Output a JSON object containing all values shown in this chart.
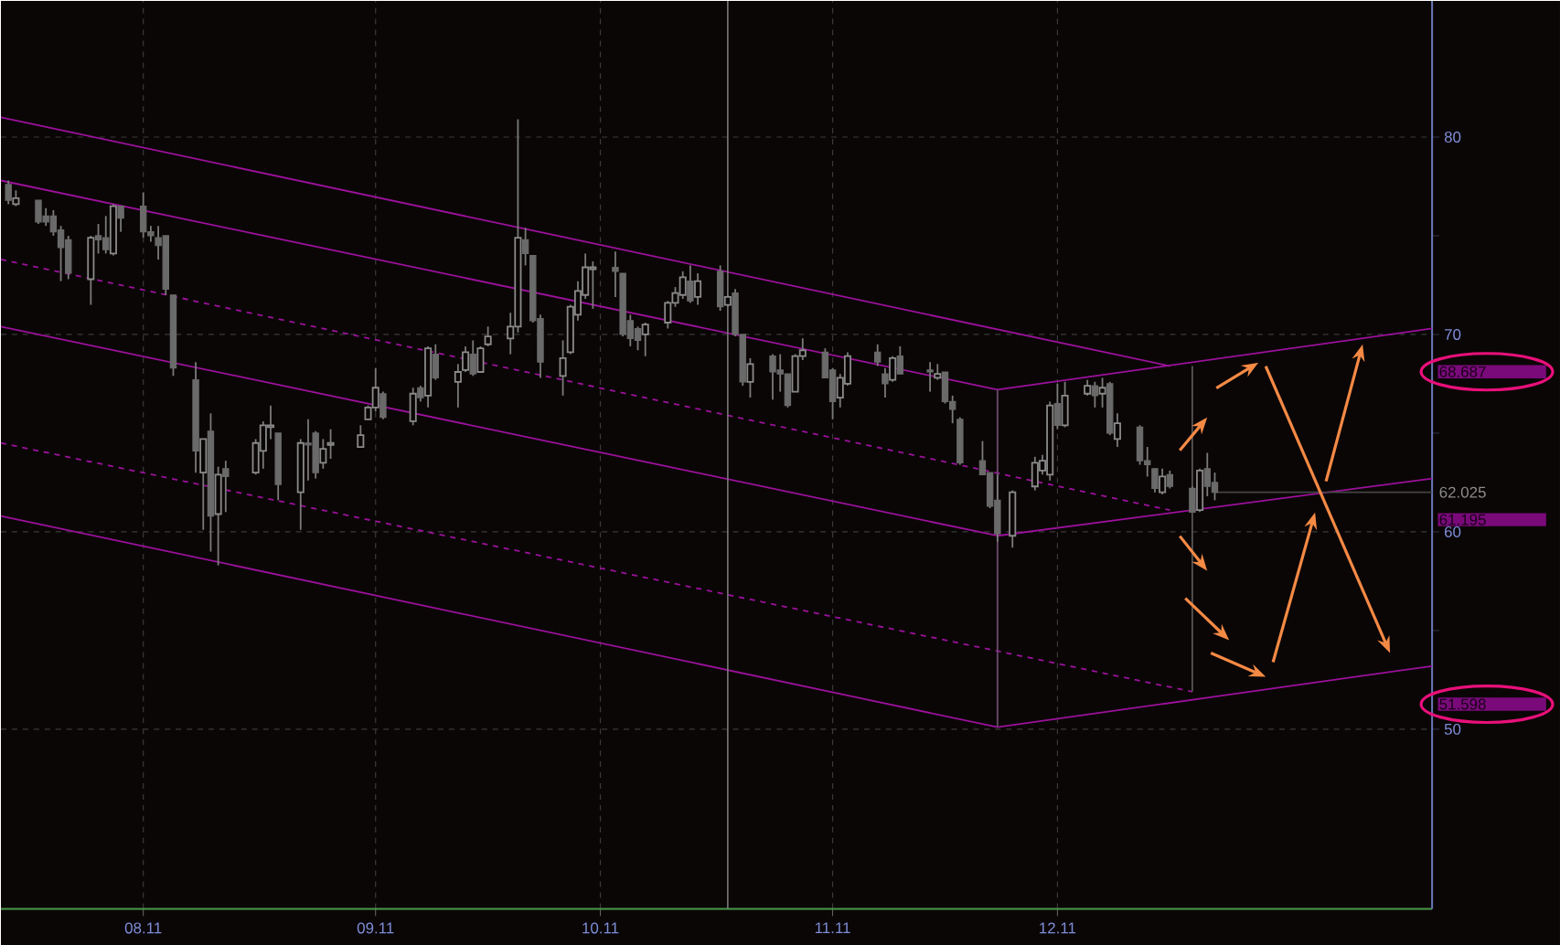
{
  "chart_data": {
    "type": "candlestick",
    "x": [
      "2011-07-14",
      "2011-07-15",
      "2011-07-18",
      "2011-07-19",
      "2011-07-20",
      "2011-07-21",
      "2011-07-22",
      "2011-07-25",
      "2011-07-26",
      "2011-07-27",
      "2011-07-28",
      "2011-07-29",
      "2011-08-01",
      "2011-08-02",
      "2011-08-03",
      "2011-08-04",
      "2011-08-05",
      "2011-08-08",
      "2011-08-09",
      "2011-08-10",
      "2011-08-11",
      "2011-08-12",
      "2011-08-16",
      "2011-08-17",
      "2011-08-18",
      "2011-08-19",
      "2011-08-22",
      "2011-08-23",
      "2011-08-24",
      "2011-08-25",
      "2011-08-26",
      "2011-08-30",
      "2011-08-31",
      "2011-09-01",
      "2011-09-02",
      "2011-09-06",
      "2011-09-07",
      "2011-09-08",
      "2011-09-09",
      "2011-09-12",
      "2011-09-13",
      "2011-09-14",
      "2011-09-15",
      "2011-09-16",
      "2011-09-19",
      "2011-09-20",
      "2011-09-21",
      "2011-09-22",
      "2011-09-23",
      "2011-09-26",
      "2011-09-27",
      "2011-09-28",
      "2011-09-29",
      "2011-09-30",
      "2011-10-03",
      "2011-10-04",
      "2011-10-05",
      "2011-10-06",
      "2011-10-07",
      "2011-10-10",
      "2011-10-11",
      "2011-10-12",
      "2011-10-13",
      "2011-10-14",
      "2011-10-17",
      "2011-10-18",
      "2011-10-19",
      "2011-10-20",
      "2011-10-21",
      "2011-10-24",
      "2011-10-25",
      "2011-10-26",
      "2011-10-27",
      "2011-10-28",
      "2011-10-31",
      "2011-11-01",
      "2011-11-02",
      "2011-11-03",
      "2011-11-07",
      "2011-11-08",
      "2011-11-09",
      "2011-11-10",
      "2011-11-14",
      "2011-11-15",
      "2011-11-16",
      "2011-11-17",
      "2011-11-18",
      "2011-11-21",
      "2011-11-22",
      "2011-11-23",
      "2011-11-25",
      "2011-11-28",
      "2011-11-29",
      "2011-11-30",
      "2011-12-01",
      "2011-12-02",
      "2011-12-05",
      "2011-12-06",
      "2011-12-07",
      "2011-12-08",
      "2011-12-09",
      "2011-12-12",
      "2011-12-13",
      "2011-12-14",
      "2011-12-15",
      "2011-12-16",
      "2011-12-19",
      "2011-12-20",
      "2011-12-21",
      "2011-12-22"
    ],
    "ohlc": [
      [
        77.6,
        77.8,
        76.6,
        76.8
      ],
      [
        76.6,
        77.3,
        76.5,
        76.9
      ],
      [
        76.8,
        76.8,
        75.6,
        75.7
      ],
      [
        76.0,
        76.4,
        75.5,
        75.7
      ],
      [
        76.0,
        76.3,
        75.0,
        75.2
      ],
      [
        75.3,
        75.5,
        72.7,
        74.4
      ],
      [
        74.8,
        75.0,
        72.8,
        73.1
      ],
      [
        72.8,
        75.0,
        71.5,
        74.9
      ],
      [
        75.0,
        75.6,
        74.1,
        74.8
      ],
      [
        74.9,
        76.0,
        74.1,
        74.3
      ],
      [
        74.1,
        76.6,
        74.0,
        76.5
      ],
      [
        76.5,
        76.5,
        75.2,
        75.9
      ],
      [
        76.5,
        77.2,
        74.9,
        75.2
      ],
      [
        75.2,
        75.5,
        74.7,
        75.0
      ],
      [
        74.9,
        75.5,
        73.8,
        74.5
      ],
      [
        75.0,
        75.0,
        72.0,
        72.3
      ],
      [
        72.0,
        72.0,
        67.9,
        68.3
      ],
      [
        67.7,
        68.6,
        63.0,
        64.1
      ],
      [
        63.0,
        64.7,
        60.1,
        64.7
      ],
      [
        65.1,
        66.0,
        59.0,
        60.8
      ],
      [
        60.9,
        63.3,
        58.3,
        62.9
      ],
      [
        63.2,
        63.6,
        61.0,
        62.8
      ],
      [
        63.0,
        64.7,
        62.9,
        64.5
      ],
      [
        64.1,
        65.6,
        63.2,
        65.4
      ],
      [
        65.3,
        66.4,
        64.7,
        65.4
      ],
      [
        65.0,
        65.0,
        61.6,
        62.4
      ],
      [
        62.0,
        64.7,
        60.1,
        64.5
      ],
      [
        64.5,
        65.7,
        62.6,
        64.4
      ],
      [
        65.0,
        65.1,
        62.7,
        63.0
      ],
      [
        63.5,
        64.7,
        63.2,
        64.2
      ],
      [
        64.4,
        65.2,
        63.7,
        64.5
      ],
      [
        64.3,
        65.4,
        64.3,
        64.9
      ],
      [
        65.7,
        66.4,
        65.7,
        66.3
      ],
      [
        66.3,
        68.3,
        66.1,
        67.3
      ],
      [
        67.0,
        67.1,
        65.7,
        65.8
      ],
      [
        65.6,
        67.3,
        65.4,
        67.0
      ],
      [
        67.3,
        67.4,
        66.6,
        66.8
      ],
      [
        66.9,
        69.4,
        66.3,
        69.3
      ],
      [
        69.0,
        69.5,
        67.7,
        67.8
      ],
      [
        67.6,
        68.5,
        66.3,
        68.1
      ],
      [
        68.2,
        69.4,
        68.1,
        69.1
      ],
      [
        69.0,
        69.7,
        67.9,
        68.0
      ],
      [
        68.1,
        69.4,
        68.1,
        69.3
      ],
      [
        69.5,
        70.4,
        69.4,
        69.9
      ],
      [
        69.8,
        71.1,
        69.0,
        70.4
      ],
      [
        70.4,
        80.9,
        70.1,
        74.9
      ],
      [
        74.8,
        75.4,
        73.5,
        74.1
      ],
      [
        74.0,
        74.0,
        70.6,
        70.7
      ],
      [
        70.8,
        71.0,
        67.8,
        68.6
      ],
      [
        67.9,
        69.7,
        66.9,
        68.8
      ],
      [
        69.1,
        71.5,
        69.0,
        71.4
      ],
      [
        71.0,
        72.7,
        70.7,
        72.2
      ],
      [
        72.0,
        74.1,
        71.8,
        73.4
      ],
      [
        73.3,
        73.7,
        71.3,
        73.4
      ],
      [
        73.4,
        74.2,
        71.9,
        73.2
      ],
      [
        73.1,
        73.1,
        69.9,
        70.0
      ],
      [
        70.7,
        71.0,
        69.4,
        69.8
      ],
      [
        70.3,
        70.4,
        69.2,
        69.7
      ],
      [
        70.0,
        70.6,
        68.9,
        70.5
      ],
      [
        70.6,
        71.7,
        70.3,
        71.6
      ],
      [
        71.6,
        72.4,
        71.4,
        72.1
      ],
      [
        72.0,
        73.2,
        71.8,
        72.9
      ],
      [
        72.7,
        73.5,
        71.6,
        71.7
      ],
      [
        71.9,
        73.1,
        71.5,
        72.7
      ],
      [
        73.2,
        73.5,
        71.2,
        71.4
      ],
      [
        71.5,
        72.0,
        71.4,
        71.9
      ],
      [
        72.1,
        72.3,
        69.9,
        70.0
      ],
      [
        70.0,
        70.0,
        67.4,
        67.6
      ],
      [
        67.6,
        68.8,
        66.8,
        68.5
      ],
      [
        68.9,
        69.0,
        66.7,
        68.1
      ],
      [
        68.2,
        69.0,
        67.1,
        68.0
      ],
      [
        68.0,
        68.0,
        66.3,
        66.4
      ],
      [
        67.1,
        69.0,
        67.1,
        68.9
      ],
      [
        68.9,
        69.8,
        68.7,
        69.2
      ],
      [
        69.1,
        69.3,
        67.8,
        67.8
      ],
      [
        68.2,
        68.3,
        65.7,
        66.6
      ],
      [
        66.8,
        68.0,
        66.3,
        67.8
      ],
      [
        67.5,
        69.1,
        67.4,
        68.9
      ],
      [
        69.1,
        69.5,
        68.4,
        68.6
      ],
      [
        68.0,
        68.3,
        66.8,
        67.5
      ],
      [
        67.7,
        68.9,
        67.6,
        68.8
      ],
      [
        68.9,
        69.4,
        68.0,
        68.0
      ],
      [
        68.2,
        68.6,
        67.1,
        68.1
      ],
      [
        67.8,
        68.5,
        67.7,
        68.0
      ],
      [
        68.1,
        68.1,
        66.5,
        66.6
      ],
      [
        66.6,
        66.9,
        65.5,
        66.2
      ],
      [
        65.7,
        65.8,
        63.4,
        63.5
      ],
      [
        63.6,
        64.6,
        62.9,
        62.9
      ],
      [
        63.0,
        63.0,
        61.2,
        61.3
      ],
      [
        61.6,
        62.9,
        59.5,
        59.9
      ],
      [
        59.8,
        62.1,
        59.2,
        62.0
      ],
      [
        62.3,
        63.8,
        62.1,
        63.5
      ],
      [
        63.1,
        63.9,
        62.9,
        63.6
      ],
      [
        62.9,
        66.6,
        62.6,
        66.4
      ],
      [
        66.5,
        67.5,
        65.2,
        65.4
      ],
      [
        65.4,
        67.6,
        65.3,
        66.9
      ],
      [
        67.0,
        67.7,
        66.9,
        67.4
      ],
      [
        67.4,
        67.6,
        66.3,
        66.9
      ],
      [
        67.0,
        67.8,
        66.3,
        67.3
      ],
      [
        67.5,
        67.6,
        64.9,
        65.0
      ],
      [
        64.7,
        66.0,
        64.3,
        65.5
      ],
      [
        65.3,
        65.4,
        63.4,
        63.6
      ],
      [
        63.6,
        64.3,
        62.8,
        63.4
      ],
      [
        63.2,
        63.2,
        62.0,
        62.2
      ],
      [
        62.0,
        63.2,
        61.9,
        62.8
      ],
      [
        62.9,
        63.1,
        62.2,
        62.3
      ],
      [
        62.2,
        62.3,
        61.0,
        61.0
      ],
      [
        61.1,
        63.2,
        61.0,
        63.1
      ],
      [
        63.2,
        64.0,
        61.8,
        62.3
      ],
      [
        62.5,
        63.0,
        61.6,
        62.0
      ]
    ],
    "xlim": [
      "2011-07-13",
      "2012-01-20"
    ],
    "ylim": [
      40.9,
      86.9
    ],
    "xticks": [
      {
        "value": "2011-08",
        "label": "08.11"
      },
      {
        "value": "2011-09",
        "label": "09.11"
      },
      {
        "value": "2011-10",
        "label": "10.11"
      },
      {
        "value": "2011-11",
        "label": "11.11"
      },
      {
        "value": "2011-12",
        "label": "12.11"
      }
    ],
    "yticks": [
      50,
      {
        "value": 55,
        "label": null
      },
      60,
      {
        "value": 65,
        "label": null
      },
      70,
      {
        "value": 75,
        "label": null
      },
      80
    ],
    "grid": true,
    "series": [
      {
        "type": "line",
        "color": "#9b119b",
        "x": [
          "2011-07-13",
          "2011-12-16"
        ],
        "values": [
          81.0,
          68.4
        ]
      },
      {
        "type": "line",
        "color": "#9b119b",
        "x": [
          "2011-07-13",
          "2011-11-23",
          "2012-01-20"
        ],
        "values": [
          77.8,
          67.2,
          70.3
        ]
      },
      {
        "type": "line",
        "color": "#9b119b",
        "line_style": "dashed",
        "x": [
          "2011-07-13",
          "2011-12-16"
        ],
        "values": [
          73.8,
          61.1
        ]
      },
      {
        "type": "line",
        "color": "#9b119b",
        "x": [
          "2011-07-13",
          "2011-11-23",
          "2012-01-20"
        ],
        "values": [
          70.4,
          59.8,
          62.7
        ]
      },
      {
        "type": "line",
        "color": "#9b119b",
        "line_style": "dashed",
        "x": [
          "2011-07-13",
          "2011-12-19"
        ],
        "values": [
          64.5,
          51.9
        ]
      },
      {
        "type": "line",
        "color": "#9b119b",
        "x": [
          "2011-07-13",
          "2011-11-23",
          "2012-01-20"
        ],
        "values": [
          60.8,
          50.1,
          53.2
        ]
      },
      {
        "type": "line",
        "color": "#6a4a6a",
        "x": [
          "2011-11-23",
          "2011-11-23"
        ],
        "values": [
          67.2,
          50.1
        ]
      },
      {
        "type": "line",
        "color": "#555555",
        "x": [
          "2011-12-19",
          "2011-12-19"
        ],
        "values": [
          68.4,
          51.9
        ]
      },
      {
        "type": "line",
        "color": "#444444",
        "x": [
          "2011-12-22",
          "2012-01-20"
        ],
        "values": [
          62.0,
          62.0
        ]
      }
    ],
    "ref_lines": [
      {
        "axis": "x",
        "value": "2011-10-18",
        "color": "#7a7a7a"
      }
    ],
    "annotations": [
      "68.687",
      "62.025",
      "61.195",
      "51.598"
    ]
  }
}
